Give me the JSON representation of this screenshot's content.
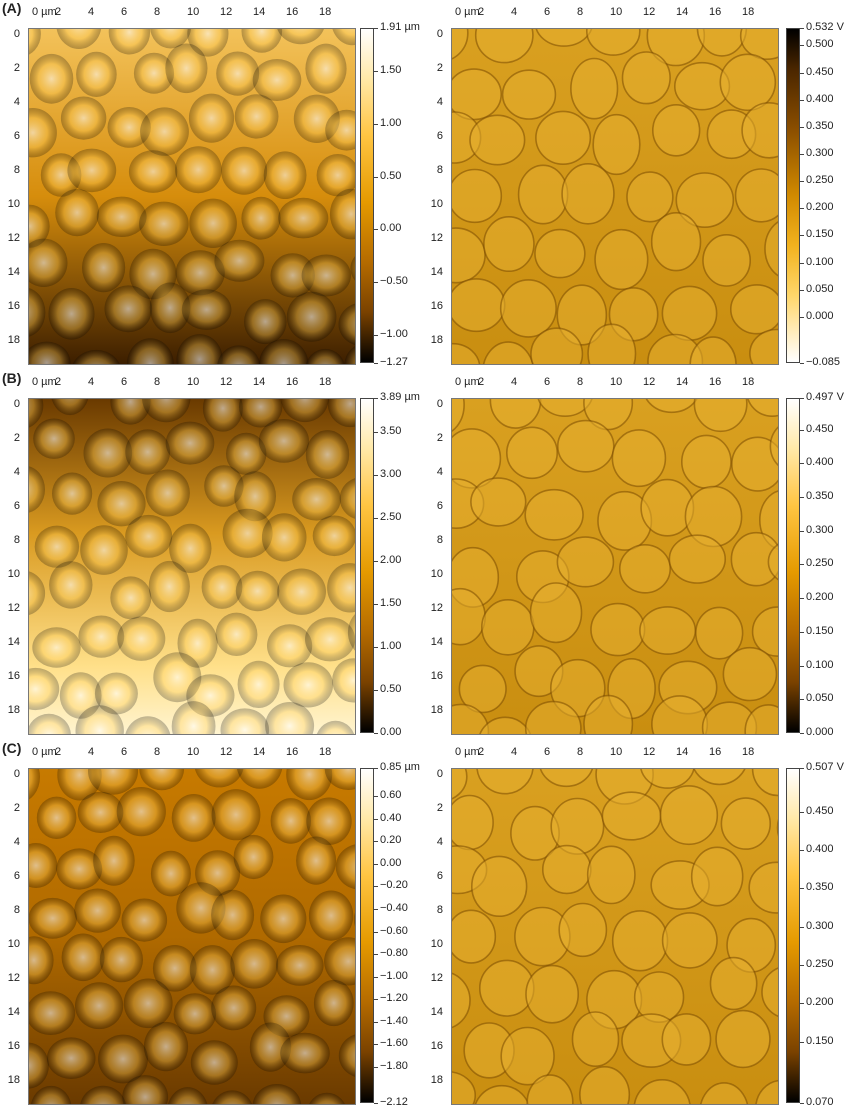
{
  "x_axis_labels": [
    "0 µm",
    "2",
    "4",
    "6",
    "8",
    "10",
    "12",
    "14",
    "16",
    "18"
  ],
  "y_axis_labels": [
    "0",
    "2",
    "4",
    "6",
    "8",
    "10",
    "12",
    "14",
    "16",
    "18"
  ],
  "panels": [
    {
      "label": "(A)",
      "height_scale": {
        "ticks": [
          "1.91 µm",
          "1.50",
          "1.00",
          "0.50",
          "0.00",
          "−0.50",
          "−1.00",
          "−1.27"
        ],
        "tick_values": [
          1.91,
          1.5,
          1.0,
          0.5,
          0.0,
          -0.5,
          -1.0,
          -1.27
        ],
        "min": -1.27,
        "max": 1.91
      },
      "phase_scale": {
        "ticks": [
          "0.532 V",
          "0.500",
          "0.450",
          "0.400",
          "0.350",
          "0.300",
          "0.250",
          "0.200",
          "0.150",
          "0.100",
          "0.050",
          "0.000",
          "−0.085"
        ],
        "tick_values": [
          0.532,
          0.5,
          0.45,
          0.4,
          0.35,
          0.3,
          0.25,
          0.2,
          0.15,
          0.1,
          0.05,
          0.0,
          -0.085
        ],
        "min": -0.085,
        "max": 0.532,
        "inverted": true
      }
    },
    {
      "label": "(B)",
      "height_scale": {
        "ticks": [
          "3.89 µm",
          "3.50",
          "3.00",
          "2.50",
          "2.00",
          "1.50",
          "1.00",
          "0.50",
          "0.00"
        ],
        "tick_values": [
          3.89,
          3.5,
          3.0,
          2.5,
          2.0,
          1.5,
          1.0,
          0.5,
          0.0
        ],
        "min": 0,
        "max": 3.89
      },
      "phase_scale": {
        "ticks": [
          "0.497 V",
          "0.450",
          "0.400",
          "0.350",
          "0.300",
          "0.250",
          "0.200",
          "0.150",
          "0.100",
          "0.050",
          "0.000"
        ],
        "tick_values": [
          0.497,
          0.45,
          0.4,
          0.35,
          0.3,
          0.25,
          0.2,
          0.15,
          0.1,
          0.05,
          0.0
        ],
        "min": 0,
        "max": 0.497
      }
    },
    {
      "label": "(C)",
      "height_scale": {
        "ticks": [
          "0.85 µm",
          "0.60",
          "0.40",
          "0.20",
          "0.00",
          "−0.20",
          "−0.40",
          "−0.60",
          "−0.80",
          "−1.00",
          "−1.20",
          "−1.40",
          "−1.60",
          "−1.80",
          "−2.12"
        ],
        "tick_values": [
          0.85,
          0.6,
          0.4,
          0.2,
          0.0,
          -0.2,
          -0.4,
          -0.6,
          -0.8,
          -1.0,
          -1.2,
          -1.4,
          -1.6,
          -1.8,
          -2.12
        ],
        "min": -2.12,
        "max": 0.85
      },
      "phase_scale": {
        "ticks": [
          "0.507 V",
          "0.450",
          "0.400",
          "0.350",
          "0.300",
          "0.250",
          "0.200",
          "0.150",
          "0.070"
        ],
        "tick_values": [
          0.507,
          0.45,
          0.4,
          0.35,
          0.3,
          0.25,
          0.2,
          0.15,
          0.07
        ],
        "min": 0.07,
        "max": 0.507
      }
    }
  ],
  "colors": {
    "afm_dark": "#000000",
    "afm_brown": "#8a4e00",
    "afm_orange": "#e59a00",
    "afm_light": "#ffe79a",
    "afm_white": "#ffffff"
  }
}
